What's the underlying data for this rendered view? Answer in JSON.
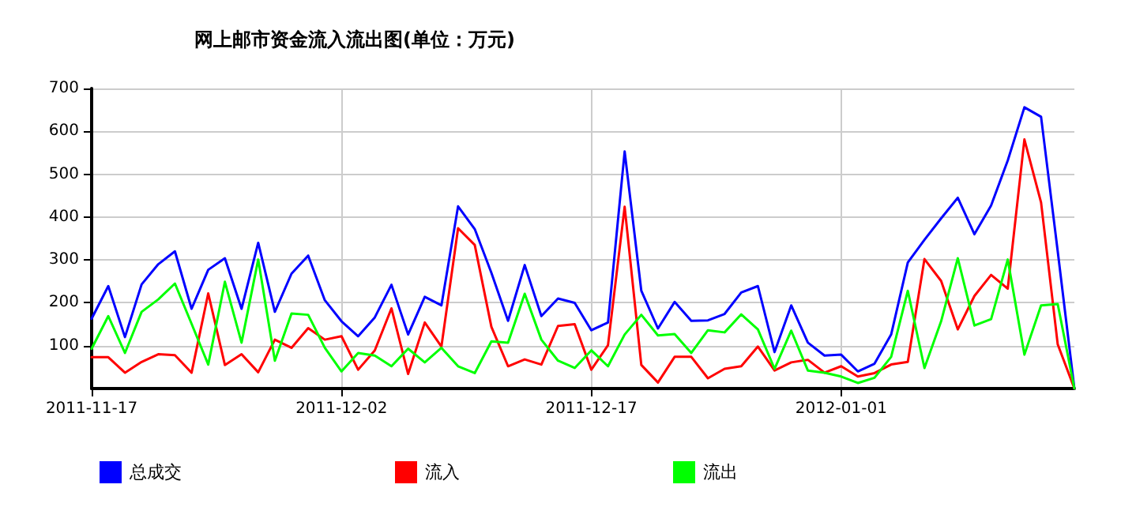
{
  "chart_data": {
    "type": "line",
    "title": "网上邮市资金流入流出图(单位：万元)",
    "x": [
      "2011-11-17",
      "2011-11-18",
      "2011-11-19",
      "2011-11-20",
      "2011-11-21",
      "2011-11-22",
      "2011-11-23",
      "2011-11-24",
      "2011-11-25",
      "2011-11-26",
      "2011-11-27",
      "2011-11-28",
      "2011-11-29",
      "2011-11-30",
      "2011-12-01",
      "2011-12-02",
      "2011-12-03",
      "2011-12-04",
      "2011-12-05",
      "2011-12-06",
      "2011-12-07",
      "2011-12-08",
      "2011-12-09",
      "2011-12-10",
      "2011-12-11",
      "2011-12-12",
      "2011-12-13",
      "2011-12-14",
      "2011-12-15",
      "2011-12-16",
      "2011-12-17",
      "2011-12-18",
      "2011-12-19",
      "2011-12-20",
      "2011-12-21",
      "2011-12-22",
      "2011-12-23",
      "2011-12-24",
      "2011-12-25",
      "2011-12-26",
      "2011-12-27",
      "2011-12-28",
      "2011-12-29",
      "2011-12-30",
      "2011-12-31",
      "2012-01-01",
      "2012-01-02",
      "2012-01-03",
      "2012-01-04",
      "2012-01-05",
      "2012-01-06",
      "2012-01-07",
      "2012-01-08",
      "2012-01-09",
      "2012-01-10",
      "2012-01-11",
      "2012-01-12",
      "2012-01-13",
      "2012-01-14",
      "2012-01-15"
    ],
    "series": [
      {
        "name": "总成交",
        "color": "#0000ff",
        "values": [
          163,
          239,
          120,
          243,
          290,
          320,
          186,
          277,
          304,
          186,
          340,
          179,
          268,
          310,
          206,
          157,
          122,
          166,
          242,
          126,
          214,
          194,
          425,
          372,
          270,
          158,
          288,
          169,
          210,
          200,
          136,
          154,
          553,
          228,
          140,
          202,
          158,
          159,
          174,
          224,
          239,
          85,
          194,
          107,
          77,
          79,
          40,
          58,
          126,
          294,
          347,
          397,
          445,
          360,
          427,
          532,
          656,
          634,
          320,
          0
        ]
      },
      {
        "name": "流入",
        "color": "#ff0000",
        "values": [
          73,
          73,
          37,
          62,
          80,
          78,
          37,
          222,
          55,
          80,
          38,
          114,
          95,
          141,
          114,
          122,
          44,
          89,
          187,
          34,
          154,
          98,
          374,
          335,
          144,
          52,
          68,
          56,
          146,
          150,
          44,
          101,
          424,
          55,
          14,
          74,
          74,
          24,
          46,
          52,
          98,
          42,
          61,
          67,
          37,
          52,
          28,
          36,
          56,
          62,
          302,
          251,
          138,
          216,
          265,
          233,
          581,
          434,
          103,
          0
        ]
      },
      {
        "name": "流出",
        "color": "#00ff00",
        "values": [
          93,
          169,
          83,
          179,
          208,
          245,
          151,
          56,
          249,
          107,
          301,
          65,
          175,
          172,
          95,
          40,
          83,
          77,
          52,
          93,
          61,
          95,
          52,
          36,
          110,
          107,
          221,
          114,
          65,
          48,
          89,
          52,
          126,
          172,
          124,
          127,
          83,
          136,
          131,
          173,
          138,
          46,
          135,
          42,
          37,
          28,
          13,
          25,
          74,
          228,
          48,
          157,
          304,
          147,
          162,
          301,
          79,
          194,
          197,
          0
        ]
      }
    ],
    "xlim": [
      "2011-11-17",
      "2012-01-15"
    ],
    "xticks": [
      "2011-11-17",
      "2011-12-02",
      "2011-12-17",
      "2012-01-01"
    ],
    "ylim": [
      0,
      700
    ],
    "yticks": [
      100,
      200,
      300,
      400,
      500,
      600,
      700
    ],
    "grid": true,
    "legend": "bottom",
    "marker": "none",
    "line_style": "solid"
  }
}
